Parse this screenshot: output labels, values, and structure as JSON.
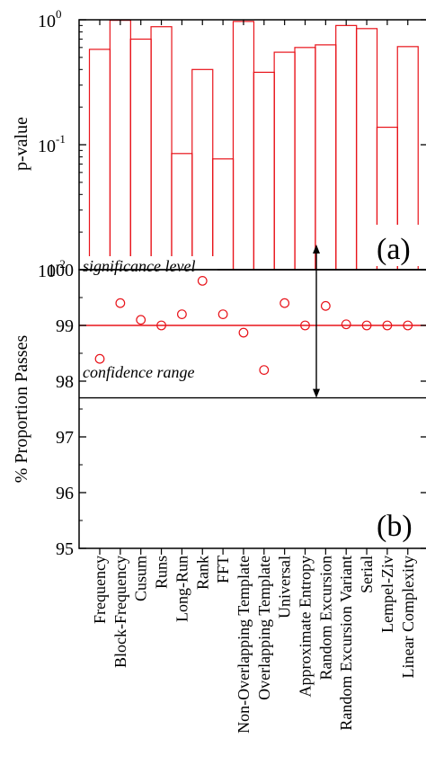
{
  "chart_data": [
    {
      "type": "bar",
      "panel_label": "(a)",
      "ylabel": "p-value",
      "yscale": "log",
      "ylim": [
        0.01,
        1
      ],
      "yticks": [
        {
          "value": 1,
          "base": "10",
          "exp": "0"
        },
        {
          "value": 0.1,
          "base": "10",
          "exp": "-1"
        },
        {
          "value": 0.01,
          "base": "10",
          "exp": "-2"
        }
      ],
      "categories": [
        "Frequency",
        "Block-Frequency",
        "Cusum",
        "Runs",
        "Long-Run",
        "Rank",
        "FFT",
        "Non-Overlapping Template",
        "Overlapping Template",
        "Universal",
        "Approximate Entropy",
        "Random Excursion",
        "Random Excursion Variant",
        "Serial",
        "Lempel-Ziv",
        "Linear Complexity"
      ],
      "values": [
        0.58,
        0.99,
        0.7,
        0.88,
        0.085,
        0.4,
        0.077,
        0.97,
        0.38,
        0.55,
        0.6,
        0.63,
        0.9,
        0.85,
        0.138,
        0.61
      ],
      "reference_line": {
        "value": 0.01,
        "label": "significance level"
      },
      "bar_color": "#e8131a"
    },
    {
      "type": "scatter",
      "panel_label": "(b)",
      "ylabel": "% Proportion Passes",
      "ylim": [
        95,
        100
      ],
      "yticks": [
        95,
        96,
        97,
        98,
        99,
        100
      ],
      "categories": [
        "Frequency",
        "Block-Frequency",
        "Cusum",
        "Runs",
        "Long-Run",
        "Rank",
        "FFT",
        "Non-Overlapping Template",
        "Overlapping Template",
        "Universal",
        "Approximate Entropy",
        "Random Excursion",
        "Random Excursion Variant",
        "Serial",
        "Lempel-Ziv",
        "Linear Complexity"
      ],
      "values": [
        98.4,
        99.4,
        99.1,
        99.0,
        99.2,
        99.8,
        99.2,
        98.87,
        98.2,
        99.4,
        99.0,
        99.35,
        99.02,
        99.0,
        99.0,
        99.0
      ],
      "reference_lines": [
        {
          "value": 99.0,
          "color": "#e8131a"
        },
        {
          "value": 97.7,
          "color": "#000000"
        }
      ],
      "annotation": "confidence range",
      "marker_color": "#e8131a"
    }
  ]
}
